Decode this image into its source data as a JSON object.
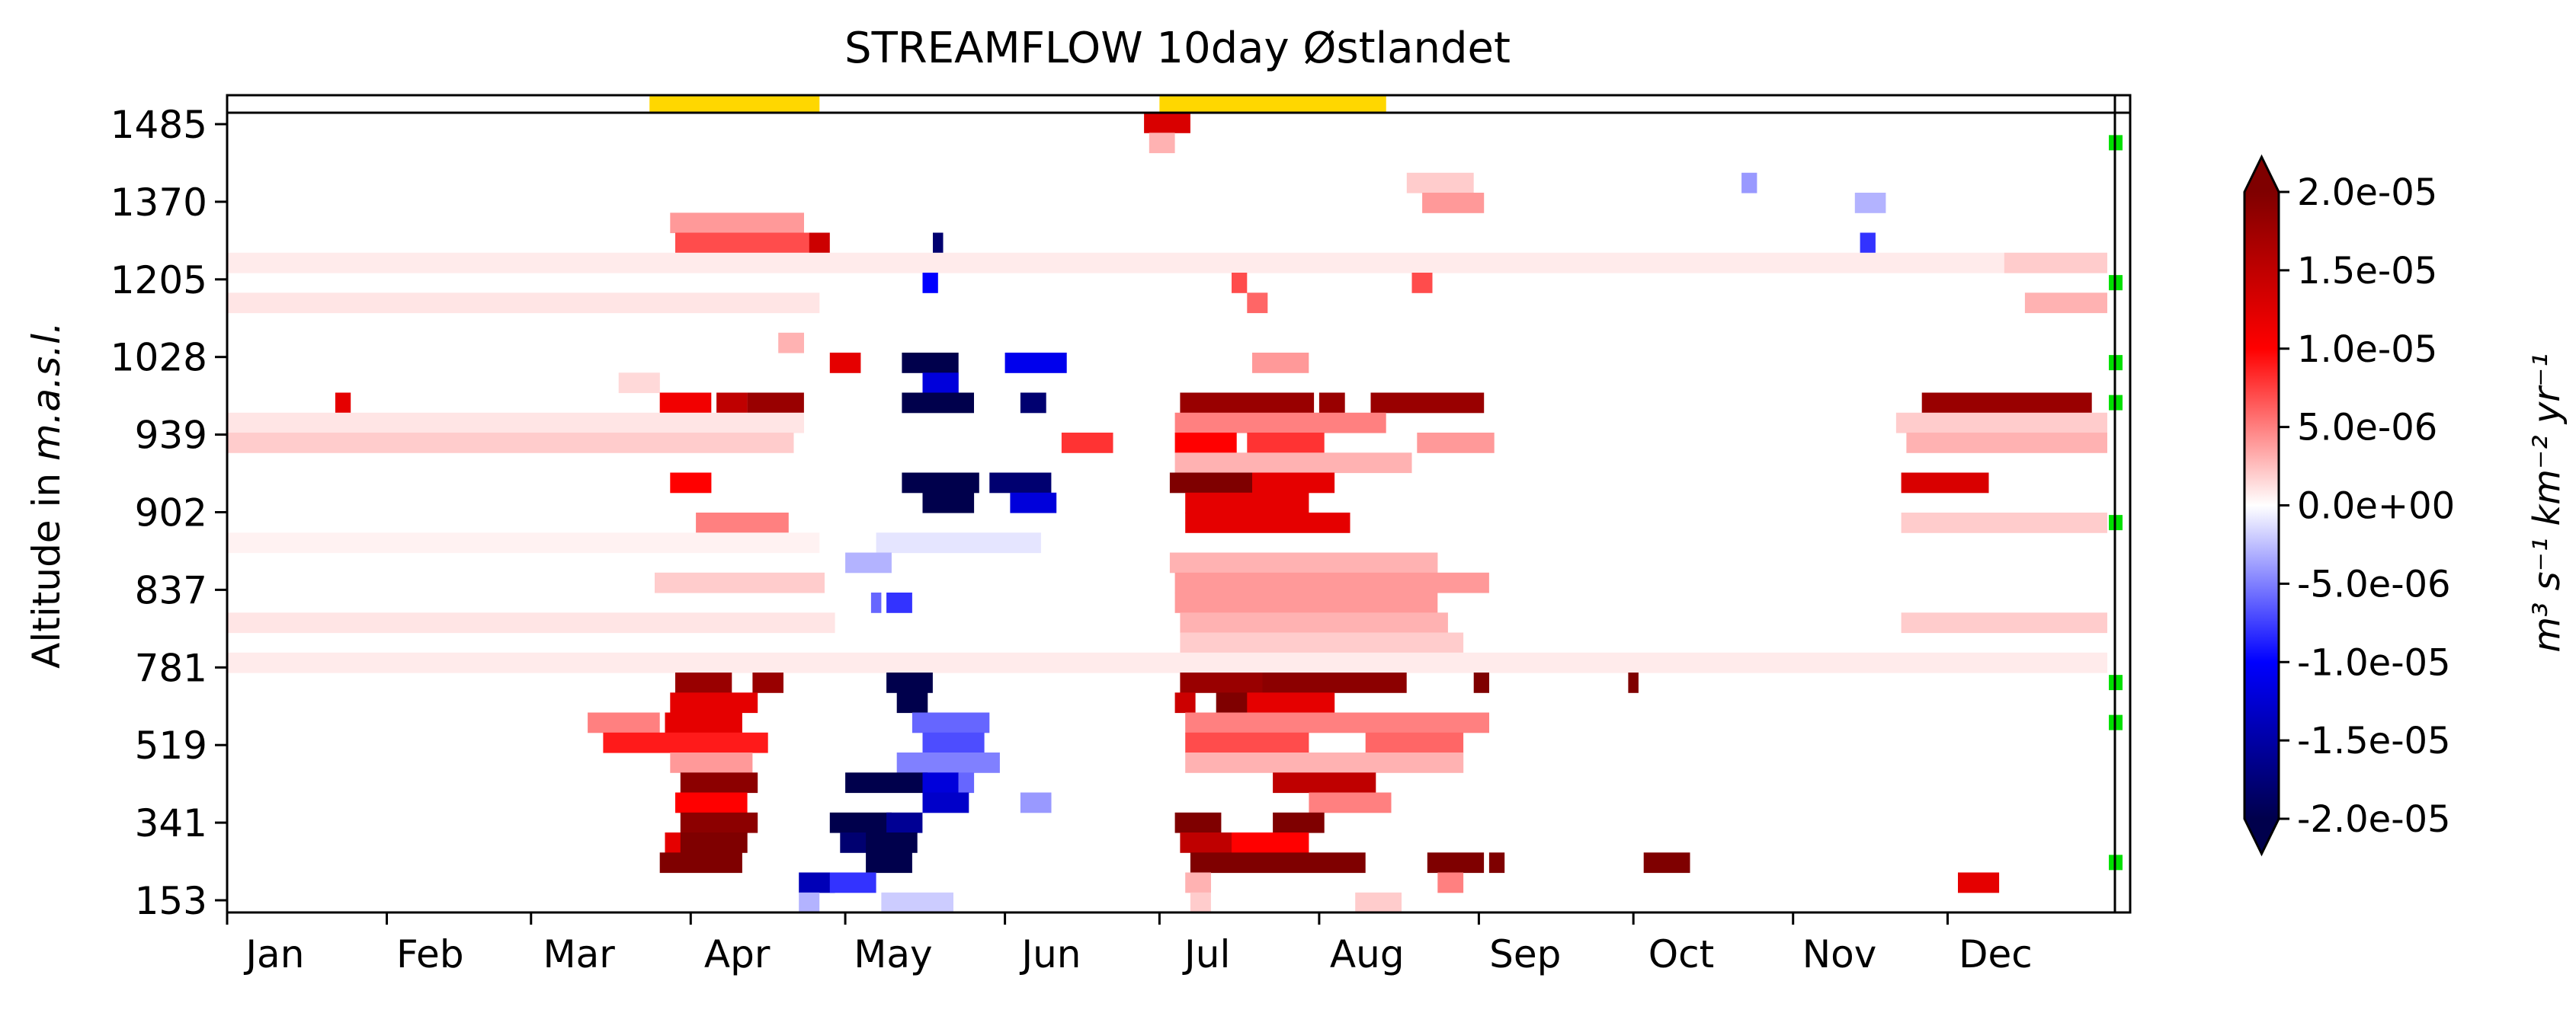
{
  "chart_data": {
    "type": "heatmap",
    "title": "STREAMFLOW 10day Østlandet",
    "ylabel_prefix": "Altitude in ",
    "ylabel_unit": "m.a.s.l.",
    "xlabel": "",
    "x_ticks": [
      "Jan",
      "Feb",
      "Mar",
      "Apr",
      "May",
      "Jun",
      "Jul",
      "Aug",
      "Sep",
      "Oct",
      "Nov",
      "Dec"
    ],
    "y_ticks": [
      "1485",
      "1370",
      "1205",
      "1028",
      "939",
      "902",
      "837",
      "781",
      "519",
      "341",
      "153"
    ],
    "n_rows": 40,
    "x_range_days": [
      1,
      365
    ],
    "colorbar": {
      "min": -2e-05,
      "max": 2e-05,
      "extend": "both",
      "ticks": [
        "2.0e-05",
        "1.5e-05",
        "1.0e-05",
        "5.0e-06",
        "0.0e+00",
        "-5.0e-06",
        "-1.0e-05",
        "-1.5e-05",
        "-2.0e-05"
      ],
      "label": "m³ s⁻¹ km⁻² yr⁻¹",
      "colors": [
        "#00004c",
        "#0000ff",
        "#ffffff",
        "#ff0000",
        "#7f0000"
      ]
    },
    "top_bar_color": "#ffd700",
    "top_bars": [
      {
        "start_day": 83,
        "end_day": 115
      },
      {
        "start_day": 182,
        "end_day": 225
      }
    ],
    "marker_color": "#00e000",
    "right_markers_rows": [
      38,
      31,
      27,
      25,
      19,
      11,
      9,
      2
    ],
    "segments": [
      [
        39,
        179,
        187,
        1.3e-05
      ],
      [
        38,
        180,
        184,
        3e-06
      ],
      [
        36,
        230,
        242,
        2e-06
      ],
      [
        35,
        233,
        244,
        4e-06
      ],
      [
        35,
        317,
        322,
        -3e-06
      ],
      [
        36,
        295,
        297,
        -4e-06
      ],
      [
        34,
        87,
        112,
        4e-06
      ],
      [
        33,
        88,
        114,
        7e-06
      ],
      [
        33,
        114,
        117,
        1.4e-05
      ],
      [
        33,
        138,
        139,
        -1.8e-05
      ],
      [
        33,
        318,
        320,
        -8e-06
      ],
      [
        32,
        1,
        365,
        8e-07
      ],
      [
        32,
        346,
        365,
        2e-06
      ],
      [
        31,
        136,
        138,
        -1e-05
      ],
      [
        31,
        196,
        198,
        7e-06
      ],
      [
        31,
        231,
        234,
        7e-06
      ],
      [
        30,
        1,
        115,
        1e-06
      ],
      [
        30,
        350,
        365,
        3e-06
      ],
      [
        30,
        199,
        202,
        6e-06
      ],
      [
        28,
        108,
        112,
        3e-06
      ],
      [
        27,
        118,
        123,
        1.2e-05
      ],
      [
        27,
        132,
        142,
        -2e-05
      ],
      [
        27,
        152,
        163,
        -1.1e-05
      ],
      [
        27,
        200,
        210,
        4e-06
      ],
      [
        26,
        77,
        84,
        1.5e-06
      ],
      [
        26,
        136,
        142,
        -1.2e-05
      ],
      [
        25,
        22,
        24,
        1.2e-05
      ],
      [
        25,
        85,
        94,
        1.1e-05
      ],
      [
        25,
        96,
        101,
        1.5e-05
      ],
      [
        25,
        102,
        112,
        1.8e-05
      ],
      [
        25,
        132,
        145,
        -2e-05
      ],
      [
        25,
        155,
        159,
        -1.8e-05
      ],
      [
        25,
        186,
        211,
        1.8e-05
      ],
      [
        25,
        213,
        217,
        1.8e-05
      ],
      [
        25,
        223,
        244,
        1.8e-05
      ],
      [
        25,
        330,
        362,
        1.8e-05
      ],
      [
        24,
        1,
        112,
        1e-06
      ],
      [
        24,
        185,
        225,
        5e-06
      ],
      [
        24,
        325,
        365,
        2e-06
      ],
      [
        23,
        1,
        110,
        2e-06
      ],
      [
        23,
        163,
        172,
        8e-06
      ],
      [
        23,
        185,
        196,
        1e-05
      ],
      [
        23,
        199,
        213,
        8e-06
      ],
      [
        23,
        232,
        246,
        4e-06
      ],
      [
        23,
        327,
        365,
        3e-06
      ],
      [
        22,
        185,
        230,
        3e-06
      ],
      [
        21,
        87,
        94,
        1e-05
      ],
      [
        21,
        132,
        146,
        -2e-05
      ],
      [
        21,
        149,
        160,
        -1.8e-05
      ],
      [
        21,
        184,
        200,
        2e-05
      ],
      [
        21,
        200,
        215,
        1.2e-05
      ],
      [
        21,
        326,
        342,
        1.3e-05
      ],
      [
        20,
        136,
        145,
        -2e-05
      ],
      [
        20,
        153,
        161,
        -1.2e-05
      ],
      [
        20,
        187,
        210,
        1.2e-05
      ],
      [
        19,
        92,
        109,
        5e-06
      ],
      [
        19,
        187,
        218,
        1.2e-05
      ],
      [
        19,
        326,
        365,
        2e-06
      ],
      [
        18,
        1,
        115,
        5e-07
      ],
      [
        18,
        127,
        158,
        -1e-06
      ],
      [
        17,
        121,
        129,
        -3e-06
      ],
      [
        17,
        184,
        235,
        3e-06
      ],
      [
        16,
        84,
        116,
        2e-06
      ],
      [
        16,
        185,
        245,
        4e-06
      ],
      [
        15,
        126,
        127,
        -6e-06
      ],
      [
        15,
        129,
        133,
        -8e-06
      ],
      [
        15,
        185,
        235,
        4e-06
      ],
      [
        14,
        1,
        118,
        1e-06
      ],
      [
        14,
        186,
        237,
        3e-06
      ],
      [
        14,
        326,
        365,
        2e-06
      ],
      [
        13,
        186,
        240,
        2e-06
      ],
      [
        12,
        1,
        365,
        8e-07
      ],
      [
        11,
        88,
        98,
        1.8e-05
      ],
      [
        11,
        103,
        108,
        1.8e-05
      ],
      [
        11,
        129,
        137,
        -2e-05
      ],
      [
        11,
        186,
        202,
        1.8e-05
      ],
      [
        11,
        202,
        229,
        1.9e-05
      ],
      [
        11,
        243,
        245,
        2e-05
      ],
      [
        11,
        273,
        274,
        2e-05
      ],
      [
        10,
        87,
        103,
        1.2e-05
      ],
      [
        10,
        131,
        136,
        -2e-05
      ],
      [
        10,
        185,
        188,
        1.4e-05
      ],
      [
        10,
        193,
        199,
        2e-05
      ],
      [
        10,
        199,
        215,
        1.2e-05
      ],
      [
        9,
        71,
        84,
        5e-06
      ],
      [
        9,
        86,
        100,
        1.2e-05
      ],
      [
        9,
        134,
        148,
        -6e-06
      ],
      [
        9,
        187,
        245,
        5e-06
      ],
      [
        8,
        74,
        105,
        9e-06
      ],
      [
        8,
        136,
        147,
        -7e-06
      ],
      [
        8,
        187,
        210,
        7e-06
      ],
      [
        8,
        222,
        240,
        6e-06
      ],
      [
        7,
        87,
        102,
        4e-06
      ],
      [
        7,
        131,
        150,
        -5e-06
      ],
      [
        7,
        187,
        240,
        3e-06
      ],
      [
        6,
        89,
        103,
        1.9e-05
      ],
      [
        6,
        121,
        136,
        -2e-05
      ],
      [
        6,
        136,
        142,
        -1.2e-05
      ],
      [
        6,
        143,
        145,
        -6e-06
      ],
      [
        6,
        204,
        223,
        1.5e-05
      ],
      [
        5,
        88,
        101,
        1e-05
      ],
      [
        5,
        136,
        144,
        -1.3e-05
      ],
      [
        5,
        155,
        160,
        -4e-06
      ],
      [
        5,
        211,
        226,
        5e-06
      ],
      [
        4,
        89,
        103,
        1.9e-05
      ],
      [
        4,
        118,
        129,
        -2e-05
      ],
      [
        4,
        129,
        135,
        -1.6e-05
      ],
      [
        4,
        185,
        193,
        2e-05
      ],
      [
        4,
        204,
        213,
        2e-05
      ],
      [
        3,
        86,
        89,
        1.2e-05
      ],
      [
        3,
        89,
        101,
        2e-05
      ],
      [
        3,
        120,
        125,
        -1.8e-05
      ],
      [
        3,
        125,
        134,
        -2e-05
      ],
      [
        3,
        186,
        195,
        1.5e-05
      ],
      [
        3,
        196,
        210,
        1e-05
      ],
      [
        2,
        85,
        87,
        2e-05
      ],
      [
        2,
        88,
        100,
        2e-05
      ],
      [
        2,
        125,
        133,
        -2e-05
      ],
      [
        2,
        188,
        221,
        2e-05
      ],
      [
        2,
        234,
        244,
        2e-05
      ],
      [
        2,
        246,
        248,
        2e-05
      ],
      [
        2,
        276,
        284,
        2e-05
      ],
      [
        1,
        112,
        118,
        -1.4e-05
      ],
      [
        1,
        118,
        126,
        -8e-06
      ],
      [
        1,
        187,
        191,
        3e-06
      ],
      [
        1,
        236,
        240,
        5e-06
      ],
      [
        1,
        337,
        344,
        1.2e-05
      ],
      [
        0,
        112,
        115,
        -3e-06
      ],
      [
        0,
        128,
        141,
        -2e-06
      ],
      [
        0,
        188,
        191,
        2e-06
      ],
      [
        0,
        220,
        228,
        2e-06
      ]
    ]
  }
}
